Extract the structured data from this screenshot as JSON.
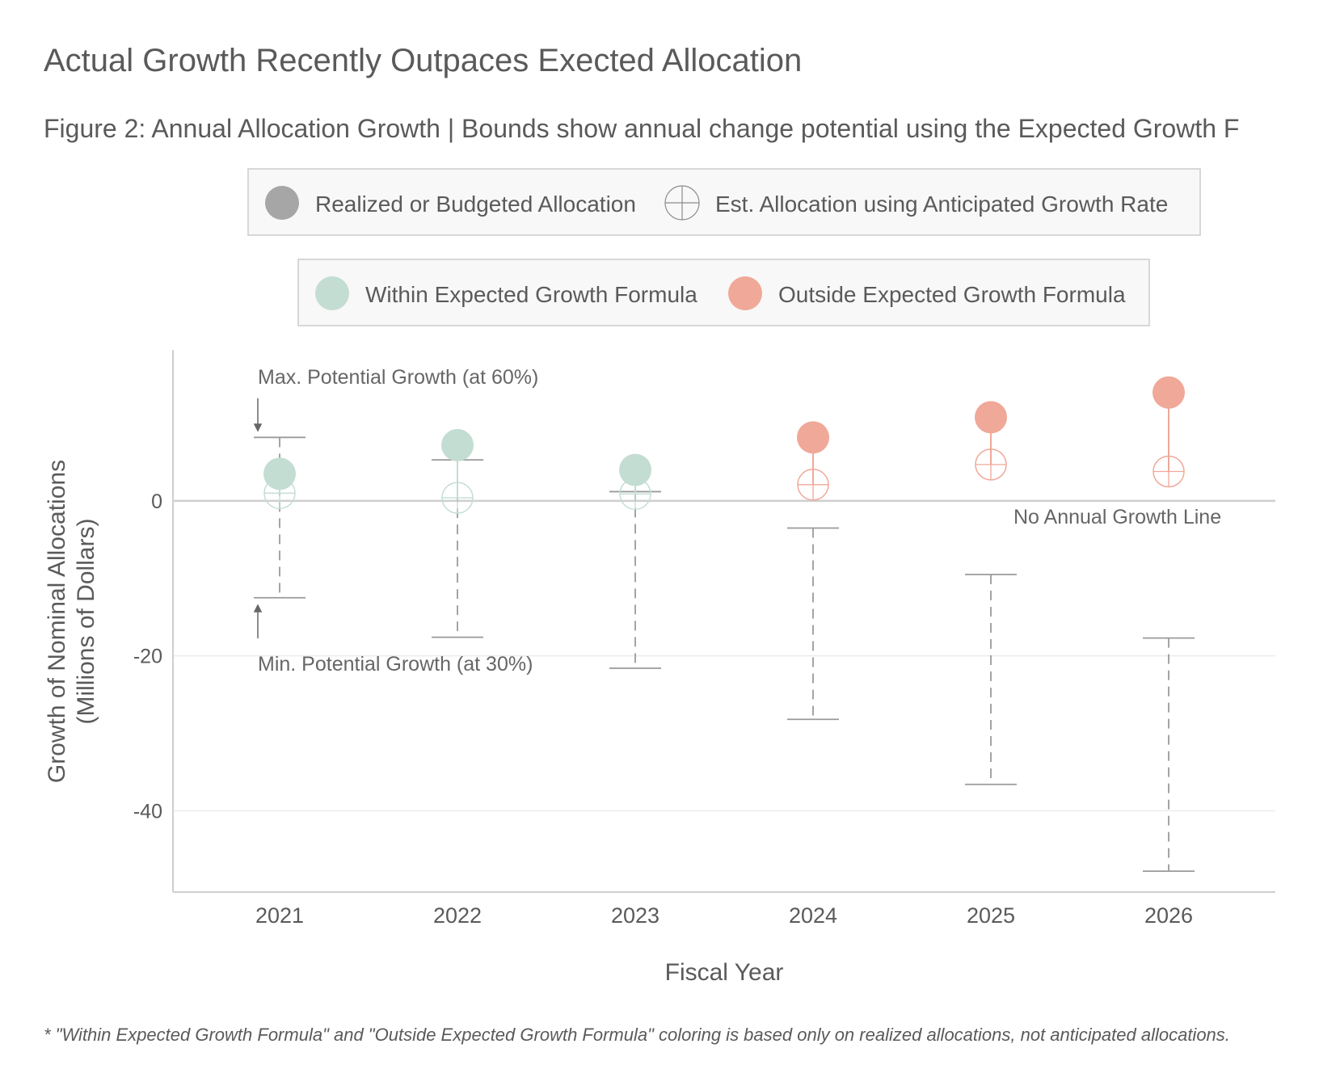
{
  "title": "Actual Growth Recently Outpaces Exected Allocation",
  "subtitle": "Figure 2: Annual Allocation Growth | Bounds show annual change potential using the Expected Growth F",
  "legend_shape": {
    "items": [
      {
        "label": "Realized or Budgeted Allocation",
        "icon": "filled-circle-icon"
      },
      {
        "label": "Est. Allocation using Anticipated Growth Rate",
        "icon": "crosshair-circle-icon"
      }
    ]
  },
  "legend_color": {
    "items": [
      {
        "label": "Within Expected Growth Formula",
        "color": "#c4ddd3"
      },
      {
        "label": "Outside Expected Growth Formula",
        "color": "#f0a898"
      }
    ]
  },
  "annotations": {
    "max_label": "Max. Potential Growth (at 60%)",
    "min_label": "Min. Potential Growth (at 30%)",
    "zero_label": "No Annual Growth Line"
  },
  "footnote": "* \"Within Expected Growth Formula\" and \"Outside Expected Growth Formula\" coloring is based only on realized allocations, not anticipated allocations.",
  "colors": {
    "within": "#c4ddd3",
    "outside": "#f0a898",
    "bounds": "#9a9a9a",
    "grid": "#ececec",
    "zero_line": "#cfcfcf",
    "text": "#5a5a5a",
    "legend_shape_filled": "#a6a6a6",
    "legend_shape_outline": "#8c8c8c"
  },
  "chart_data": {
    "type": "scatter",
    "xlabel": "Fiscal Year",
    "ylabel_lines": [
      "Growth of Nominal Allocations",
      "(Millions of Dollars)"
    ],
    "x": [
      "2021",
      "2022",
      "2023",
      "2024",
      "2025",
      "2026"
    ],
    "ylim": [
      -50.5,
      19.5
    ],
    "yticks": [
      0,
      -20,
      -40
    ],
    "grid": true,
    "series": [
      {
        "name": "Realized or Budgeted Allocation",
        "values": [
          3.5,
          7.2,
          4.0,
          8.2,
          10.8,
          14.0
        ]
      },
      {
        "name": "Est. Allocation using Anticipated Growth Rate",
        "values": [
          1.0,
          0.4,
          0.9,
          2.1,
          4.7,
          3.8
        ]
      }
    ],
    "max_bound": [
      8.2,
      5.3,
      1.2,
      -3.5,
      -9.5,
      -17.7
    ],
    "min_bound": [
      -12.5,
      -17.6,
      -21.6,
      -28.2,
      -36.6,
      -47.8
    ],
    "category": [
      "within",
      "within",
      "within",
      "outside",
      "outside",
      "outside"
    ]
  }
}
